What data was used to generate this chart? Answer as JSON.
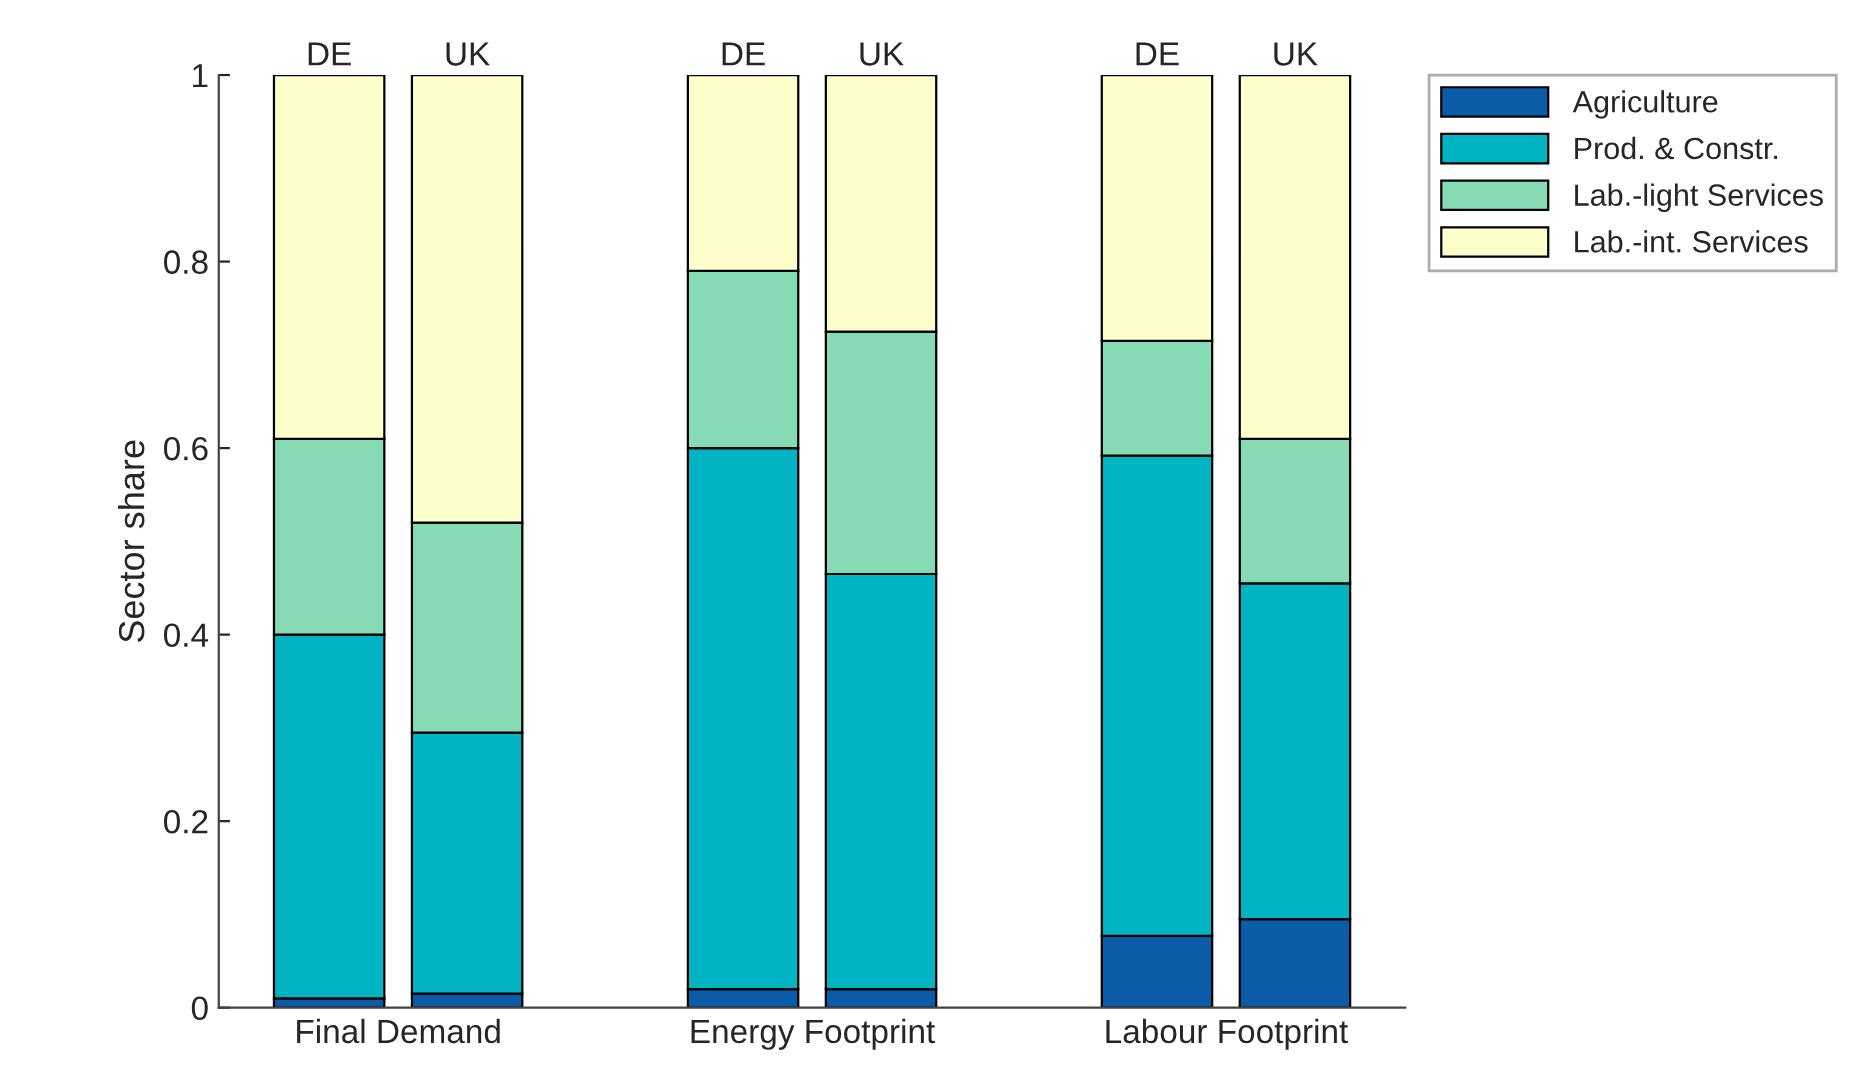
{
  "chart_data": {
    "type": "bar",
    "stacked": true,
    "ylabel": "Sector share",
    "categories": [
      "DE",
      "UK",
      "DE",
      "UK",
      "DE",
      "UK"
    ],
    "series": [
      {
        "name": "Agriculture",
        "color": "#0b5ca8",
        "values": [
          0.01,
          0.015,
          0.02,
          0.02,
          0.077,
          0.095
        ]
      },
      {
        "name": "Prod. & Constr.",
        "color": "#00b4c4",
        "values": [
          0.39,
          0.28,
          0.58,
          0.445,
          0.515,
          0.36
        ]
      },
      {
        "name": "Lab.-light Services",
        "color": "#86dbb4",
        "values": [
          0.21,
          0.225,
          0.19,
          0.26,
          0.123,
          0.155
        ]
      },
      {
        "name": "Lab.-int. Services",
        "color": "#ffffcc",
        "values": [
          0.39,
          0.48,
          0.21,
          0.275,
          0.285,
          0.39
        ]
      }
    ],
    "annotations": [
      "Final Demand",
      "Energy Footprint",
      "Labour Footprint"
    ],
    "ylim": [
      0,
      1
    ],
    "yticks": [
      0,
      0.2,
      0.4,
      0.6,
      0.8,
      1
    ],
    "grid": false,
    "legend": "top right"
  }
}
